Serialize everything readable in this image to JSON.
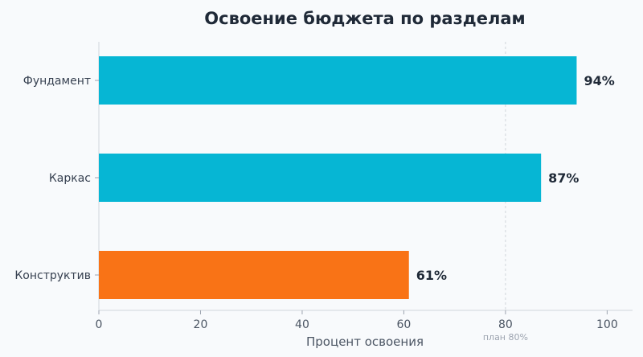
{
  "chart_data": {
    "type": "bar",
    "orientation": "horizontal",
    "title": "Освоение бюджета по разделам",
    "xlabel": "Процент освоения",
    "ylabel": "",
    "categories": [
      "Фундамент",
      "Каркас",
      "Конструктив"
    ],
    "values": [
      94,
      87,
      61
    ],
    "value_labels": [
      "94%",
      "87%",
      "61%"
    ],
    "colors": [
      "#06b6d4",
      "#06b6d4",
      "#f97316"
    ],
    "xlim": [
      0,
      105
    ],
    "xticks": [
      0,
      20,
      40,
      60,
      80,
      100
    ],
    "grid": false,
    "reference_line": {
      "value": 80,
      "label": "план 80%",
      "color": "#d1d5db"
    }
  }
}
